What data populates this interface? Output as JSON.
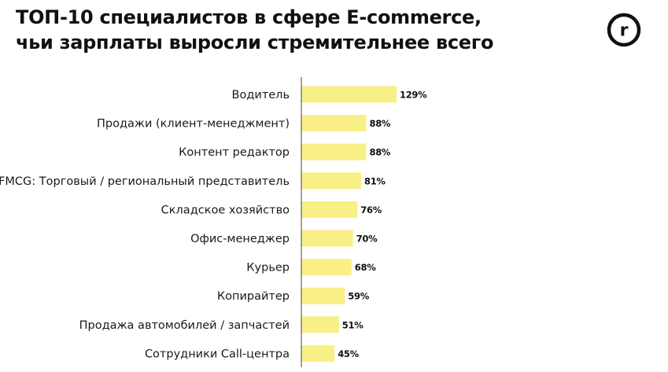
{
  "title": {
    "line1": "ТОП-10 специалистов в сфере E-commerce,",
    "line2": "чьи зарплаты выросли стремительнее всего"
  },
  "logo": {
    "icon": "r-logo-icon",
    "text": "r"
  },
  "colors": {
    "bar": "#f9ef87",
    "axis": "#444444",
    "logo": "#111111"
  },
  "chart_data": {
    "type": "bar",
    "orientation": "horizontal",
    "categories": [
      "Водитель",
      "Продажи (клиент-менеджмент)",
      "Контент редактор",
      "FMCG: Торговый / региональный представитель",
      "Складское хозяйство",
      "Офис-менеджер",
      "Курьер",
      "Копирайтер",
      "Продажа автомобилей / запчастей",
      "Сотрудники Call-центра"
    ],
    "values": [
      129,
      88,
      88,
      81,
      76,
      70,
      68,
      59,
      51,
      45
    ],
    "value_labels": [
      "129%",
      "88%",
      "88%",
      "81%",
      "76%",
      "70%",
      "68%",
      "59%",
      "51%",
      "45%"
    ],
    "title": "ТОП-10 специалистов в сфере E-commerce, чьи зарплаты выросли стремительнее всего",
    "xlabel": "",
    "ylabel": "",
    "xlim": [
      0,
      129
    ],
    "grid": false,
    "legend": "none"
  }
}
